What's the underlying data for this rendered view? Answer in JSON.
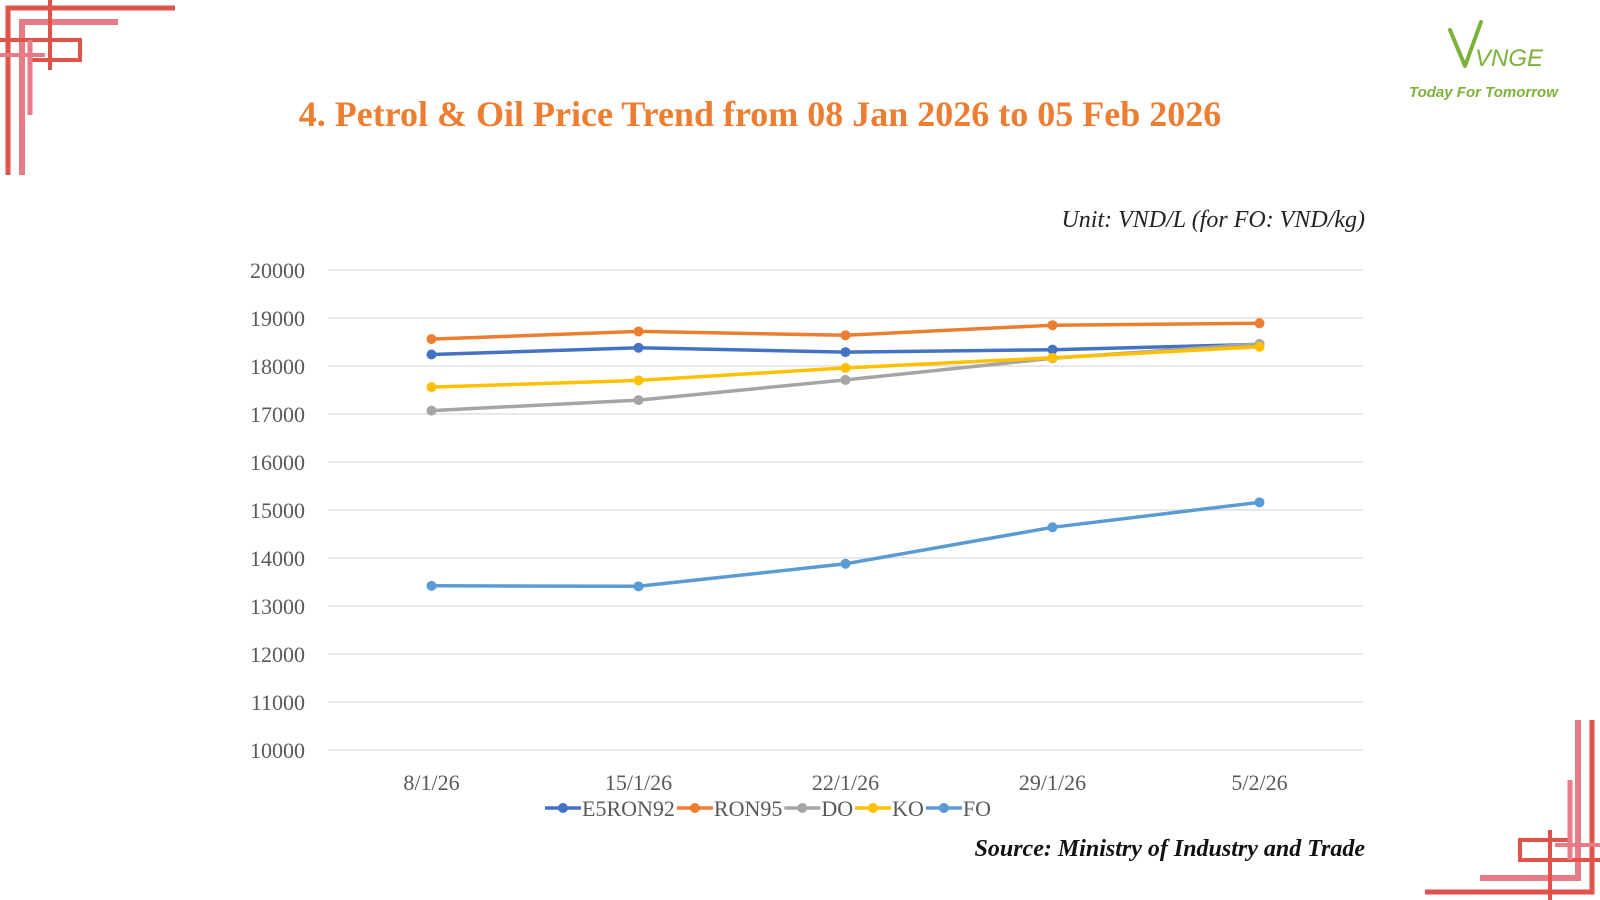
{
  "logo": {
    "brand": "VNGE",
    "tagline": "Today For Tomorrow"
  },
  "title": "4. Petrol & Oil Price Trend from 08 Jan 2026 to 05 Feb 2026",
  "unit_note": "Unit: VND/L (for FO: VND/kg)",
  "source_note": "Source: Ministry of Industry and Trade",
  "colors": {
    "title": "#ed7d31",
    "brand_green": "#7cb13a",
    "decor_pink": "#e87b86",
    "decor_red": "#e0524a"
  },
  "chart_data": {
    "type": "line",
    "title": "",
    "xlabel": "",
    "ylabel": "",
    "categories": [
      "8/1/26",
      "15/1/26",
      "22/1/26",
      "29/1/26",
      "5/2/26"
    ],
    "ylim": [
      10000,
      20000
    ],
    "yticks": [
      10000,
      11000,
      12000,
      13000,
      14000,
      15000,
      16000,
      17000,
      18000,
      19000,
      20000
    ],
    "grid": true,
    "legend_position": "bottom",
    "series": [
      {
        "name": "E5RON92",
        "color": "#4472c4",
        "values": [
          18240,
          18380,
          18290,
          18340,
          18450
        ]
      },
      {
        "name": "RON95",
        "color": "#ed7d31",
        "values": [
          18560,
          18720,
          18640,
          18850,
          18890
        ]
      },
      {
        "name": "DO",
        "color": "#a5a5a5",
        "values": [
          17070,
          17290,
          17710,
          18160,
          18460
        ]
      },
      {
        "name": "KO",
        "color": "#ffc000",
        "values": [
          17560,
          17700,
          17960,
          18170,
          18400
        ]
      },
      {
        "name": "FO",
        "color": "#5b9bd5",
        "values": [
          13420,
          13410,
          13880,
          14640,
          15160
        ]
      }
    ]
  }
}
